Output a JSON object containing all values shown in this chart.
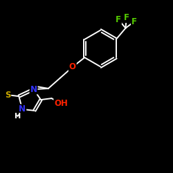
{
  "background_color": "#000000",
  "bond_color": "#ffffff",
  "atom_colors": {
    "F": "#55cc00",
    "O": "#ff2200",
    "N": "#3333ff",
    "S": "#ccaa00",
    "H": "#ffffff",
    "C": "#ffffff"
  },
  "font_size_atom": 8.5,
  "line_width": 1.4,
  "figsize": [
    2.5,
    2.5
  ],
  "dpi": 100,
  "xlim": [
    0,
    10
  ],
  "ylim": [
    0,
    10
  ]
}
